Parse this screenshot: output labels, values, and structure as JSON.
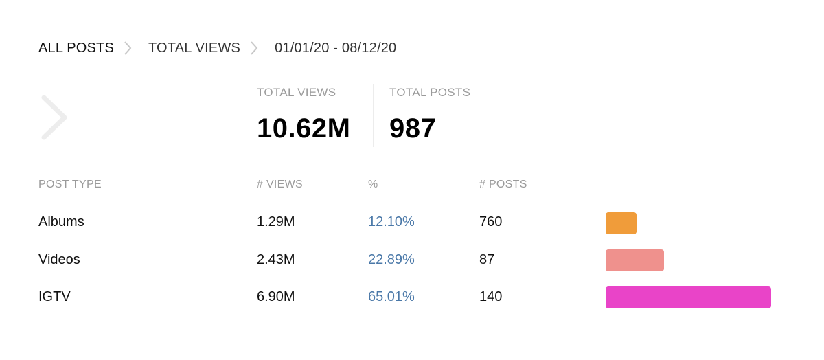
{
  "breadcrumb": {
    "items": [
      "ALL POSTS",
      "TOTAL VIEWS",
      "01/01/20 - 08/12/20"
    ]
  },
  "summary": {
    "total_views_label": "TOTAL VIEWS",
    "total_views_value": "10.62M",
    "total_posts_label": "TOTAL POSTS",
    "total_posts_value": "987"
  },
  "table": {
    "headers": [
      "POST TYPE",
      "# VIEWS",
      "%",
      "# POSTS"
    ],
    "rows": [
      {
        "type": "Albums",
        "views": "1.29M",
        "pct": "12.10%",
        "posts": "760",
        "share": 12.1,
        "color": "#f09c3a"
      },
      {
        "type": "Videos",
        "views": "2.43M",
        "pct": "22.89%",
        "posts": "87",
        "share": 22.89,
        "color": "#ef918d"
      },
      {
        "type": "IGTV",
        "views": "6.90M",
        "pct": "65.01%",
        "posts": "140",
        "share": 65.01,
        "color": "#e944c8"
      }
    ]
  },
  "colors": {
    "accent_percent": "#4a78a8"
  },
  "icons": {
    "back": "chevron-right-icon",
    "separator": "chevron-right-icon"
  }
}
